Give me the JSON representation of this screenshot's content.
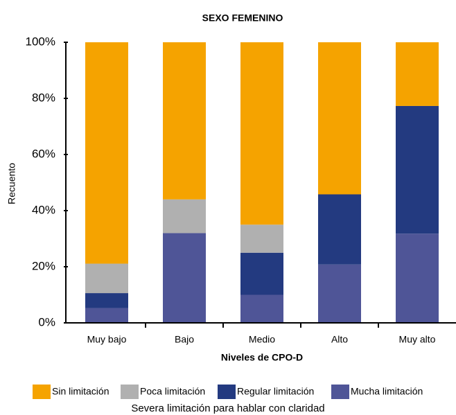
{
  "chart_data": {
    "type": "stacked_bar",
    "title": "SEXO FEMENINO",
    "x_label": "Niveles de CPO-D",
    "y_label": "Recuento",
    "legend_title": "Severa limitación para hablar con claridad",
    "categories": [
      "Muy bajo",
      "Bajo",
      "Medio",
      "Alto",
      "Muy alto"
    ],
    "series": [
      {
        "name": "Sin limitación",
        "color": "#f5a300",
        "values": [
          78.9,
          56,
          65,
          54.2,
          22.7
        ]
      },
      {
        "name": "Poca limitación",
        "color": "#b0b0b0",
        "values": [
          10.5,
          12,
          10,
          0,
          0
        ]
      },
      {
        "name": "Regular limitación",
        "color": "#233a80",
        "values": [
          5.3,
          0,
          15,
          25,
          45.5
        ]
      },
      {
        "name": "Mucha limitación",
        "color": "#4f5597",
        "values": [
          5.3,
          32,
          10,
          20.8,
          31.8
        ]
      }
    ],
    "ylim": [
      0,
      100
    ],
    "yticks": [
      {
        "value": 0,
        "label": "0%"
      },
      {
        "value": 20,
        "label": "20%"
      },
      {
        "value": 40,
        "label": "40%"
      },
      {
        "value": 60,
        "label": "60%"
      },
      {
        "value": 80,
        "label": "80%"
      },
      {
        "value": 100,
        "label": "100%"
      }
    ],
    "legend_position": "bottom"
  }
}
